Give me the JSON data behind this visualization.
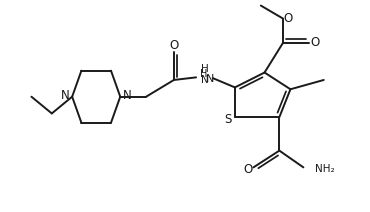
{
  "bg_color": "#ffffff",
  "line_color": "#1a1a1a",
  "line_width": 1.4,
  "font_size": 7.5,
  "figsize": [
    3.7,
    2.12
  ],
  "dpi": 100,
  "xlim": [
    0,
    10
  ],
  "ylim": [
    0,
    5.7
  ]
}
